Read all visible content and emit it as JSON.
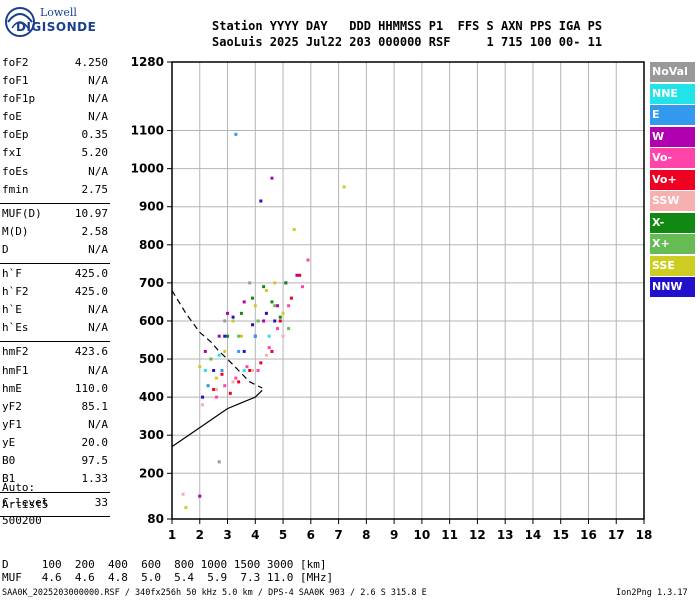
{
  "logo": {
    "line1": "Lowell",
    "line2": "DIGISONDE"
  },
  "header": {
    "line1": "Station YYYY DAY   DDD HHMMSS P1  FFS S AXN PPS IGA PS",
    "line2": "SaoLuis 2025 Jul22 203 000000 RSF     1 715 100 00- 11"
  },
  "params": [
    {
      "name": "foF2",
      "value": "4.250"
    },
    {
      "name": "foF1",
      "value": "N/A"
    },
    {
      "name": "foF1p",
      "value": "N/A"
    },
    {
      "name": "foE",
      "value": "N/A"
    },
    {
      "name": "foEp",
      "value": "0.35"
    },
    {
      "name": "fxI",
      "value": "5.20"
    },
    {
      "name": "foEs",
      "value": "N/A"
    },
    {
      "name": "fmin",
      "value": "2.75"
    },
    {
      "sep": true
    },
    {
      "name": "MUF(D)",
      "value": "10.97"
    },
    {
      "name": "M(D)",
      "value": "2.58"
    },
    {
      "name": "D",
      "value": "N/A"
    },
    {
      "sep": true
    },
    {
      "name": "h`F",
      "value": "425.0"
    },
    {
      "name": "h`F2",
      "value": "425.0"
    },
    {
      "name": "h`E",
      "value": "N/A"
    },
    {
      "name": "h`Es",
      "value": "N/A"
    },
    {
      "sep": true
    },
    {
      "name": "hmF2",
      "value": "423.6"
    },
    {
      "name": "hmF1",
      "value": "N/A"
    },
    {
      "name": "hmE",
      "value": "110.0"
    },
    {
      "name": "yF2",
      "value": "85.1"
    },
    {
      "name": "yF1",
      "value": "N/A"
    },
    {
      "name": "yE",
      "value": "20.0"
    },
    {
      "name": "B0",
      "value": "97.5"
    },
    {
      "name": "B1",
      "value": "1.33"
    },
    {
      "sep": true
    },
    {
      "name": "C-level",
      "value": "33"
    },
    {
      "sep": true
    }
  ],
  "auto": [
    "Auto:",
    "Artist5",
    "500200"
  ],
  "legend": [
    {
      "label": "NoVal",
      "color": "#999999"
    },
    {
      "label": "NNE",
      "color": "#22e3e8"
    },
    {
      "label": "E",
      "color": "#3399ee"
    },
    {
      "label": "W",
      "color": "#b000b0"
    },
    {
      "label": "Vo-",
      "color": "#ff44aa"
    },
    {
      "label": "Vo+",
      "color": "#ee0022"
    },
    {
      "label": "SSW",
      "color": "#f7b0b0"
    },
    {
      "label": "X-",
      "color": "#118811"
    },
    {
      "label": "X+",
      "color": "#66bb55"
    },
    {
      "label": "SSE",
      "color": "#cccc22"
    },
    {
      "label": "NNW",
      "color": "#2211cc"
    }
  ],
  "muf_table": {
    "d_row": "D     100  200  400  600  800 1000 1500 3000 [km]",
    "muf_row": "MUF   4.6  4.6  4.8  5.0  5.4  5.9  7.3 11.0 [MHz]"
  },
  "footer": {
    "left": "SAA0K_2025203000000.RSF / 340fx256h 50 kHz 5.0 km / DPS-4 SAA0K 903 / 2.6 S 315.8 E",
    "right": "Ion2Png 1.3.17"
  },
  "chart_data": {
    "type": "scatter",
    "title": "",
    "xlabel": "",
    "ylabel": "",
    "xlim": [
      1,
      18
    ],
    "ylim": [
      80,
      1280
    ],
    "x_ticks": [
      "1",
      "2",
      "3",
      "4",
      "5",
      "6",
      "7",
      "8",
      "9",
      "10",
      "11",
      "12",
      "13",
      "14",
      "15",
      "16",
      "17",
      "18"
    ],
    "y_ticks": [
      "80",
      "200",
      "300",
      "400",
      "500",
      "600",
      "700",
      "800",
      "900",
      "1000",
      "1100",
      "1280"
    ],
    "grid": true,
    "series": [
      {
        "name": "SSE",
        "x": [
          2.0,
          2.3,
          2.6,
          2.9,
          3.2,
          3.5,
          4.0,
          4.4,
          4.7,
          5.0,
          5.4,
          7.2,
          1.5
        ],
        "y": [
          480,
          430,
          450,
          520,
          600,
          560,
          640,
          680,
          700,
          620,
          840,
          952,
          110
        ]
      },
      {
        "name": "Vo+",
        "x": [
          2.5,
          2.8,
          3.1,
          3.4,
          3.8,
          4.2,
          4.6,
          4.9,
          5.3,
          5.6
        ],
        "y": [
          420,
          460,
          410,
          440,
          470,
          490,
          520,
          600,
          660,
          720
        ]
      },
      {
        "name": "Vo-",
        "x": [
          2.6,
          2.9,
          3.3,
          3.7,
          4.1,
          4.5,
          4.8,
          5.2,
          5.7,
          5.9
        ],
        "y": [
          400,
          430,
          450,
          480,
          470,
          530,
          580,
          640,
          690,
          760
        ]
      },
      {
        "name": "W",
        "x": [
          2.2,
          2.7,
          3.0,
          3.6,
          4.0,
          4.3,
          4.8,
          5.1,
          5.5,
          4.6,
          2.0
        ],
        "y": [
          520,
          560,
          620,
          650,
          560,
          600,
          640,
          700,
          720,
          975,
          140
        ]
      },
      {
        "name": "NNW",
        "x": [
          2.1,
          2.5,
          2.9,
          3.2,
          3.6,
          3.9,
          4.4,
          4.7,
          4.2
        ],
        "y": [
          400,
          470,
          560,
          610,
          520,
          590,
          620,
          600,
          915
        ]
      },
      {
        "name": "X-",
        "x": [
          3.0,
          3.5,
          3.9,
          4.3,
          4.6,
          4.9,
          5.1
        ],
        "y": [
          560,
          620,
          660,
          690,
          650,
          610,
          700
        ]
      },
      {
        "name": "X+",
        "x": [
          2.4,
          3.4,
          4.1,
          4.7,
          5.2
        ],
        "y": [
          500,
          560,
          600,
          640,
          580
        ]
      },
      {
        "name": "E",
        "x": [
          2.3,
          2.8,
          3.4,
          4.0,
          3.3
        ],
        "y": [
          430,
          470,
          520,
          560,
          1090
        ]
      },
      {
        "name": "NNE",
        "x": [
          2.2,
          2.7,
          3.6,
          4.5
        ],
        "y": [
          470,
          510,
          470,
          560
        ]
      },
      {
        "name": "SSW",
        "x": [
          2.1,
          2.6,
          3.2,
          3.9,
          4.4,
          5.0,
          1.4
        ],
        "y": [
          380,
          420,
          440,
          470,
          510,
          560,
          145
        ]
      },
      {
        "name": "NoVal",
        "x": [
          2.9,
          3.8,
          2.7
        ],
        "y": [
          600,
          700,
          230
        ]
      }
    ],
    "curves": [
      {
        "name": "profile",
        "style": "solid",
        "x": [
          1.0,
          1.5,
          2.0,
          2.5,
          3.0,
          3.5,
          4.0,
          4.25
        ],
        "y": [
          270,
          295,
          320,
          345,
          370,
          385,
          400,
          418
        ]
      },
      {
        "name": "profile-extrapolated",
        "style": "dashed",
        "x": [
          1.0,
          1.5,
          2.0,
          2.4,
          2.7,
          3.0,
          3.4,
          3.8,
          4.25
        ],
        "y": [
          680,
          620,
          570,
          545,
          520,
          500,
          470,
          440,
          424
        ]
      }
    ]
  }
}
